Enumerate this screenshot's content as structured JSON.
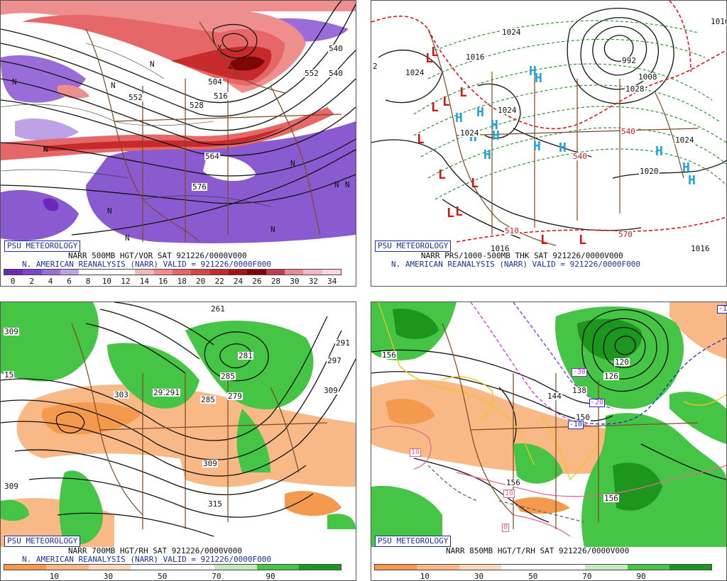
{
  "panels": [
    {
      "badge": "PSU METEOROLOGY",
      "line1": "NARR 500MB HGT/VOR SAT 921226/0000V000",
      "line2": "N. AMERICAN REANALYSIS (NARR) VALID = 921226/0000F000",
      "legend": {
        "labels": [
          "0",
          "2",
          "4",
          "6",
          "8",
          "10",
          "12",
          "14",
          "16",
          "18",
          "20",
          "22",
          "24",
          "26",
          "28",
          "30",
          "32",
          "34"
        ],
        "colors": [
          "#6a28b8",
          "#7d45c8",
          "#9a6cd8",
          "#bda3e6",
          "#ffffff",
          "#ffffff",
          "#ffffff",
          "#f5b8b8",
          "#ee8e8e",
          "#e56767",
          "#d94545",
          "#c62a2a",
          "#a31414",
          "#7d0606",
          "#c43a55",
          "#e6899a",
          "#f3b6c3",
          "#f9d5de"
        ]
      },
      "map_labels": [
        {
          "t": "552",
          "kind": "contour"
        },
        {
          "t": "504",
          "kind": "contour"
        },
        {
          "t": "516",
          "kind": "contour"
        },
        {
          "t": "528",
          "kind": "contour"
        },
        {
          "t": "540",
          "kind": "contour"
        },
        {
          "t": "564",
          "kind": "contour"
        },
        {
          "t": "576",
          "kind": "contour"
        },
        {
          "t": "552",
          "kind": "contour"
        },
        {
          "t": "540",
          "kind": "contour"
        },
        {
          "t": "N",
          "kind": "mark"
        },
        {
          "t": "N",
          "kind": "mark"
        },
        {
          "t": "N",
          "kind": "mark"
        },
        {
          "t": "N",
          "kind": "mark"
        },
        {
          "t": "N",
          "kind": "mark"
        },
        {
          "t": "N",
          "kind": "mark"
        },
        {
          "t": "N",
          "kind": "mark"
        },
        {
          "t": "N",
          "kind": "mark"
        },
        {
          "t": "N",
          "kind": "mark"
        },
        {
          "t": "N",
          "kind": "mark"
        },
        {
          "t": "X",
          "kind": "mark"
        }
      ]
    },
    {
      "badge": "PSU METEOROLOGY",
      "line1": "NARR PRS/1000-500MB THK SAT 921226/0000V000",
      "line2": "N. AMERICAN REANALYSIS (NARR) VALID = 921226/0000F000",
      "map_labels": [
        {
          "t": "L",
          "kind": "low"
        },
        {
          "t": "L",
          "kind": "low"
        },
        {
          "t": "L",
          "kind": "low"
        },
        {
          "t": "L",
          "kind": "low"
        },
        {
          "t": "L",
          "kind": "low"
        },
        {
          "t": "L",
          "kind": "low"
        },
        {
          "t": "L",
          "kind": "low"
        },
        {
          "t": "L",
          "kind": "low"
        },
        {
          "t": "L",
          "kind": "low"
        },
        {
          "t": "L",
          "kind": "low"
        },
        {
          "t": "L",
          "kind": "low"
        },
        {
          "t": "L",
          "kind": "low"
        },
        {
          "t": "H",
          "kind": "high"
        },
        {
          "t": "H",
          "kind": "high"
        },
        {
          "t": "H",
          "kind": "high"
        },
        {
          "t": "H",
          "kind": "high"
        },
        {
          "t": "H",
          "kind": "high"
        },
        {
          "t": "H",
          "kind": "high"
        },
        {
          "t": "H",
          "kind": "high"
        },
        {
          "t": "H",
          "kind": "high"
        },
        {
          "t": "H",
          "kind": "high"
        },
        {
          "t": "H",
          "kind": "high"
        },
        {
          "t": "H",
          "kind": "high"
        },
        {
          "t": "H",
          "kind": "high"
        },
        {
          "t": "H",
          "kind": "high"
        },
        {
          "t": "1024",
          "kind": "contour"
        },
        {
          "t": "1016",
          "kind": "contour"
        },
        {
          "t": "1024",
          "kind": "contour"
        },
        {
          "t": "1024",
          "kind": "contour"
        },
        {
          "t": "1024",
          "kind": "contour"
        },
        {
          "t": "1028",
          "kind": "contour"
        },
        {
          "t": "1024",
          "kind": "contour"
        },
        {
          "t": "1020",
          "kind": "contour"
        },
        {
          "t": "1016",
          "kind": "contour"
        },
        {
          "t": "1016",
          "kind": "contour"
        },
        {
          "t": "1016",
          "kind": "contour"
        },
        {
          "t": "1008",
          "kind": "contour"
        },
        {
          "t": "992",
          "kind": "contour"
        },
        {
          "t": "540",
          "kind": "thick"
        },
        {
          "t": "540",
          "kind": "thick"
        },
        {
          "t": "570",
          "kind": "thick"
        },
        {
          "t": "510",
          "kind": "thick"
        },
        {
          "t": "2",
          "kind": "contour"
        }
      ]
    },
    {
      "badge": "PSU METEOROLOGY",
      "line1": "NARR 700MB HGT/RH SAT 921226/0000V000",
      "line2": "N. AMERICAN REANALYSIS (NARR) VALID = 921226/0000F000",
      "legend": {
        "labels": [
          "10",
          "30",
          "50",
          "70",
          "90"
        ],
        "colors": [
          "#f39a4e",
          "#f8b987",
          "#fbd9bd",
          "#ffffff",
          "#ffffff",
          "#c2ecc0",
          "#45c445",
          "#1d961d"
        ]
      },
      "map_labels": [
        {
          "t": "309",
          "kind": "contour"
        },
        {
          "t": "15",
          "kind": "contour"
        },
        {
          "t": "303",
          "kind": "contour"
        },
        {
          "t": "297",
          "kind": "contour"
        },
        {
          "t": "291",
          "kind": "contour"
        },
        {
          "t": "285",
          "kind": "contour"
        },
        {
          "t": "279",
          "kind": "contour"
        },
        {
          "t": "281",
          "kind": "contour"
        },
        {
          "t": "261",
          "kind": "contour"
        },
        {
          "t": "285",
          "kind": "contour"
        },
        {
          "t": "291",
          "kind": "contour"
        },
        {
          "t": "297",
          "kind": "contour"
        },
        {
          "t": "309",
          "kind": "contour"
        },
        {
          "t": "309",
          "kind": "contour"
        },
        {
          "t": "315",
          "kind": "contour"
        },
        {
          "t": "309",
          "kind": "contour"
        }
      ]
    },
    {
      "badge": "PSU METEOROLOGY",
      "line1": "NARR 850MB HGT/T/RH SAT 921226/0000V000",
      "legend": {
        "labels": [
          "10",
          "30",
          "50",
          "70",
          "90"
        ],
        "colors": [
          "#f39a4e",
          "#f8b987",
          "#fbd9bd",
          "#ffffff",
          "#ffffff",
          "#c2ecc0",
          "#45c445",
          "#1d961d"
        ]
      },
      "map_labels": [
        {
          "t": "156",
          "kind": "contour"
        },
        {
          "t": "144",
          "kind": "contour"
        },
        {
          "t": "150",
          "kind": "contour"
        },
        {
          "t": "138",
          "kind": "contour"
        },
        {
          "t": "126",
          "kind": "contour"
        },
        {
          "t": "120",
          "kind": "contour"
        },
        {
          "t": "156",
          "kind": "contour"
        },
        {
          "t": "156",
          "kind": "contour"
        },
        {
          "t": "-30",
          "kind": "temp"
        },
        {
          "t": "-20",
          "kind": "temp"
        },
        {
          "t": "-10",
          "kind": "temp"
        },
        {
          "t": "-10",
          "kind": "temp"
        },
        {
          "t": "10",
          "kind": "temp"
        },
        {
          "t": "10",
          "kind": "temp"
        },
        {
          "t": "0",
          "kind": "temp"
        }
      ]
    }
  ]
}
